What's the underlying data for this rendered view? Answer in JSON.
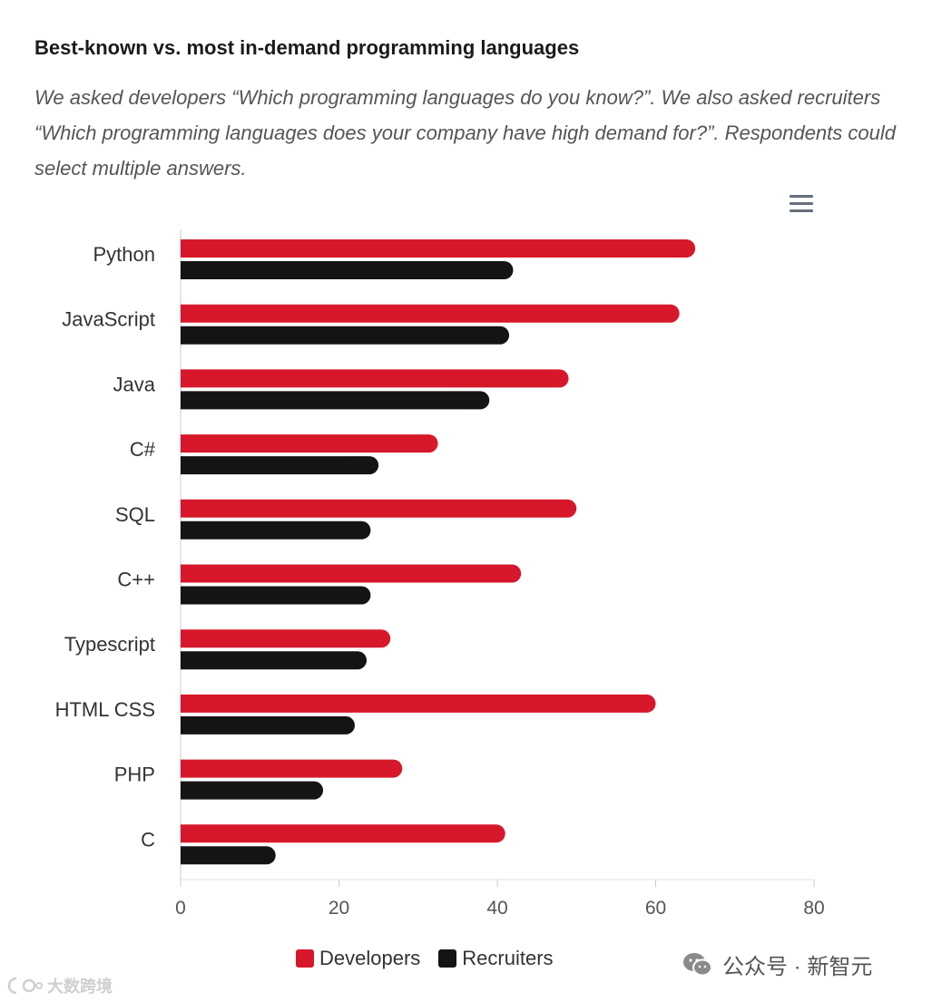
{
  "header": {
    "title": "Best-known vs. most in-demand programming languages",
    "subtitle": "We asked developers “Which programming languages do you know?”. We also asked recruiters “Which programming languages does your company have high demand for?”. Respondents could select multiple answers."
  },
  "menu": {
    "icon": "hamburger-menu-icon"
  },
  "chart_data": {
    "type": "bar",
    "orientation": "horizontal",
    "title": "Best-known vs. most in-demand programming languages",
    "categories": [
      "Python",
      "JavaScript",
      "Java",
      "C#",
      "SQL",
      "C++",
      "Typescript",
      "HTML CSS",
      "PHP",
      "C"
    ],
    "series": [
      {
        "name": "Developers",
        "color": "#d7182a",
        "values": [
          65,
          63,
          49,
          32.5,
          50,
          43,
          26.5,
          60,
          28,
          41
        ]
      },
      {
        "name": "Recruiters",
        "color": "#141414",
        "values": [
          42,
          41.5,
          39,
          25,
          24,
          24,
          23.5,
          22,
          18,
          12
        ]
      }
    ],
    "xlim": [
      0,
      80
    ],
    "xticks": [
      "0",
      "20",
      "40",
      "60",
      "80"
    ],
    "xlabel": "",
    "ylabel": "",
    "grid": false,
    "legend": "bottom-center"
  },
  "watermarks": {
    "right": "公众号 · 新智元",
    "left": "大数跨境"
  }
}
